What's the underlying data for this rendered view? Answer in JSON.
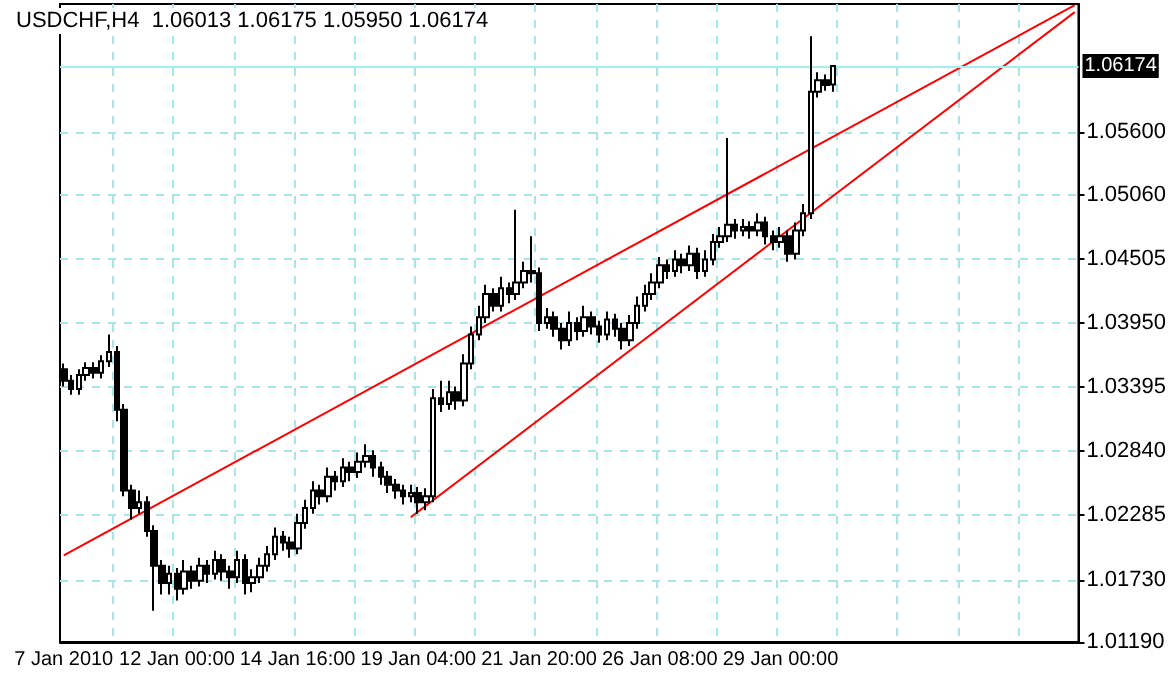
{
  "chart_data": {
    "type": "candlestick",
    "title": "USDCHF,H4  1.06013 1.06175 1.05950 1.06174",
    "categories": [
      "7 Jan 2010",
      null,
      null,
      null,
      null,
      null,
      null,
      null,
      null,
      null,
      null,
      null,
      null,
      null,
      null,
      "12 Jan 00:00",
      null,
      null,
      null,
      null,
      null,
      null,
      null,
      null,
      null,
      null,
      null,
      null,
      null,
      null,
      null,
      "14 Jan 16:00",
      null,
      null,
      null,
      null,
      null,
      null,
      null,
      null,
      null,
      null,
      null,
      null,
      null,
      null,
      null,
      "19 Jan 04:00",
      null,
      null,
      null,
      null,
      null,
      null,
      null,
      null,
      null,
      null,
      null,
      null,
      null,
      null,
      null,
      "21 Jan 20:00",
      null,
      null,
      null,
      null,
      null,
      null,
      null,
      null,
      null,
      null,
      null,
      null,
      null,
      null,
      null,
      "26 Jan 08:00",
      null,
      null,
      null,
      null,
      null,
      null,
      null,
      null,
      null,
      null,
      null,
      null,
      null,
      null,
      null,
      "29 Jan 00:00",
      null,
      null,
      null,
      null,
      null,
      null,
      null,
      null,
      null,
      null,
      null,
      null,
      null,
      null,
      null,
      null,
      null,
      null,
      null,
      null,
      null,
      null,
      null,
      null,
      null,
      null,
      null,
      null,
      null,
      null,
      null,
      null,
      null,
      null,
      null,
      null,
      null,
      null,
      null
    ],
    "ohlc": [
      [
        1.0355,
        1.036,
        1.034,
        1.0345
      ],
      [
        1.0345,
        1.035,
        1.0333,
        1.0338
      ],
      [
        1.0338,
        1.0355,
        1.0333,
        1.035
      ],
      [
        1.035,
        1.0361,
        1.0345,
        1.0356
      ],
      [
        1.0356,
        1.0361,
        1.0347,
        1.0352
      ],
      [
        1.0352,
        1.0367,
        1.0347,
        1.0362
      ],
      [
        1.0362,
        1.0385,
        1.0357,
        1.037
      ],
      [
        1.037,
        1.0375,
        1.031,
        1.032
      ],
      [
        1.032,
        1.0325,
        1.0245,
        1.025
      ],
      [
        1.025,
        1.0255,
        1.0225,
        1.0235
      ],
      [
        1.0235,
        1.025,
        1.023,
        1.024
      ],
      [
        1.024,
        1.0245,
        1.021,
        1.0215
      ],
      [
        1.0215,
        1.022,
        1.0146,
        1.0185
      ],
      [
        1.0185,
        1.019,
        1.016,
        1.017
      ],
      [
        1.017,
        1.0185,
        1.016,
        1.0178
      ],
      [
        1.0178,
        1.0183,
        1.0155,
        1.0165
      ],
      [
        1.0165,
        1.019,
        1.016,
        1.018
      ],
      [
        1.018,
        1.0185,
        1.0165,
        1.0172
      ],
      [
        1.0172,
        1.0192,
        1.0167,
        1.0185
      ],
      [
        1.0185,
        1.019,
        1.017,
        1.0178
      ],
      [
        1.0178,
        1.0198,
        1.0173,
        1.019
      ],
      [
        1.019,
        1.0195,
        1.0172,
        1.018
      ],
      [
        1.018,
        1.0185,
        1.0165,
        1.0175
      ],
      [
        1.0175,
        1.0198,
        1.017,
        1.019
      ],
      [
        1.019,
        1.0195,
        1.016,
        1.017
      ],
      [
        1.017,
        1.0182,
        1.0162,
        1.0175
      ],
      [
        1.0175,
        1.0192,
        1.017,
        1.0185
      ],
      [
        1.0185,
        1.0202,
        1.018,
        1.0195
      ],
      [
        1.0195,
        1.0218,
        1.019,
        1.021
      ],
      [
        1.021,
        1.0215,
        1.0198,
        1.0205
      ],
      [
        1.0205,
        1.021,
        1.0192,
        1.02
      ],
      [
        1.02,
        1.023,
        1.0195,
        1.0222
      ],
      [
        1.0222,
        1.0242,
        1.0217,
        1.0235
      ],
      [
        1.0235,
        1.0258,
        1.023,
        1.025
      ],
      [
        1.025,
        1.0255,
        1.0238,
        1.0245
      ],
      [
        1.0245,
        1.027,
        1.024,
        1.0262
      ],
      [
        1.0262,
        1.0267,
        1.025,
        1.0258
      ],
      [
        1.0258,
        1.0278,
        1.0253,
        1.027
      ],
      [
        1.027,
        1.0275,
        1.0258,
        1.0266
      ],
      [
        1.0266,
        1.0283,
        1.0261,
        1.0275
      ],
      [
        1.0275,
        1.029,
        1.027,
        1.028
      ],
      [
        1.028,
        1.0285,
        1.0262,
        1.027
      ],
      [
        1.027,
        1.0275,
        1.0255,
        1.0262
      ],
      [
        1.0262,
        1.0267,
        1.0248,
        1.0255
      ],
      [
        1.0255,
        1.026,
        1.0243,
        1.025
      ],
      [
        1.025,
        1.0255,
        1.0238,
        1.0245
      ],
      [
        1.0245,
        1.0255,
        1.024,
        1.0248
      ],
      [
        1.0248,
        1.0253,
        1.023,
        1.024
      ],
      [
        1.024,
        1.0252,
        1.0233,
        1.0245
      ],
      [
        1.0245,
        1.0338,
        1.024,
        1.033
      ],
      [
        1.033,
        1.0345,
        1.0318,
        1.0325
      ],
      [
        1.0325,
        1.0345,
        1.032,
        1.0335
      ],
      [
        1.0335,
        1.034,
        1.032,
        1.0328
      ],
      [
        1.0328,
        1.0368,
        1.0323,
        1.036
      ],
      [
        1.036,
        1.0392,
        1.0355,
        1.0385
      ],
      [
        1.0385,
        1.041,
        1.038,
        1.04
      ],
      [
        1.04,
        1.0428,
        1.0395,
        1.042
      ],
      [
        1.042,
        1.0425,
        1.0405,
        1.041
      ],
      [
        1.041,
        1.0435,
        1.0405,
        1.0425
      ],
      [
        1.0425,
        1.043,
        1.0412,
        1.042
      ],
      [
        1.042,
        1.0493,
        1.0415,
        1.043
      ],
      [
        1.043,
        1.0448,
        1.0425,
        1.044
      ],
      [
        1.044,
        1.047,
        1.043,
        1.0438
      ],
      [
        1.0438,
        1.0443,
        1.0388,
        1.0395
      ],
      [
        1.0395,
        1.0408,
        1.039,
        1.04
      ],
      [
        1.04,
        1.0405,
        1.0383,
        1.039
      ],
      [
        1.039,
        1.0395,
        1.0372,
        1.038
      ],
      [
        1.038,
        1.0405,
        1.0375,
        1.0395
      ],
      [
        1.0395,
        1.04,
        1.038,
        1.0388
      ],
      [
        1.0388,
        1.041,
        1.0383,
        1.04
      ],
      [
        1.04,
        1.0405,
        1.0385,
        1.0392
      ],
      [
        1.0392,
        1.0397,
        1.0378,
        1.0385
      ],
      [
        1.0385,
        1.0405,
        1.038,
        1.0398
      ],
      [
        1.0398,
        1.0403,
        1.0383,
        1.039
      ],
      [
        1.039,
        1.0395,
        1.0372,
        1.038
      ],
      [
        1.038,
        1.0402,
        1.0375,
        1.0395
      ],
      [
        1.0395,
        1.0418,
        1.039,
        1.041
      ],
      [
        1.041,
        1.0428,
        1.0405,
        1.042
      ],
      [
        1.042,
        1.0438,
        1.0415,
        1.043
      ],
      [
        1.043,
        1.0452,
        1.0425,
        1.0445
      ],
      [
        1.0445,
        1.045,
        1.0433,
        1.044
      ],
      [
        1.044,
        1.0458,
        1.0435,
        1.045
      ],
      [
        1.045,
        1.0455,
        1.0438,
        1.0445
      ],
      [
        1.0445,
        1.0462,
        1.044,
        1.0455
      ],
      [
        1.0455,
        1.046,
        1.0433,
        1.044
      ],
      [
        1.044,
        1.0458,
        1.0435,
        1.045
      ],
      [
        1.045,
        1.0472,
        1.0445,
        1.0465
      ],
      [
        1.0465,
        1.0478,
        1.046,
        1.047
      ],
      [
        1.047,
        1.0555,
        1.0465,
        1.048
      ],
      [
        1.048,
        1.0485,
        1.0468,
        1.0475
      ],
      [
        1.0475,
        1.0485,
        1.047,
        1.0478
      ],
      [
        1.0478,
        1.0483,
        1.0468,
        1.0475
      ],
      [
        1.0475,
        1.049,
        1.047,
        1.0482
      ],
      [
        1.0482,
        1.0487,
        1.0463,
        1.047
      ],
      [
        1.047,
        1.0475,
        1.0458,
        1.0465
      ],
      [
        1.0465,
        1.0478,
        1.046,
        1.047
      ],
      [
        1.047,
        1.0475,
        1.0448,
        1.0455
      ],
      [
        1.0455,
        1.0482,
        1.045,
        1.0475
      ],
      [
        1.0475,
        1.0498,
        1.047,
        1.049
      ],
      [
        1.049,
        1.0643,
        1.0485,
        1.0595
      ],
      [
        1.0595,
        1.0612,
        1.059,
        1.0605
      ],
      [
        1.0605,
        1.061,
        1.0596,
        1.0601
      ],
      [
        1.06013,
        1.06175,
        1.0595,
        1.06174
      ],
      null,
      null,
      null,
      null,
      null,
      null,
      null,
      null,
      null,
      null,
      null,
      null,
      null,
      null,
      null,
      null,
      null,
      null,
      null,
      null,
      null,
      null,
      null,
      null,
      null,
      null,
      null,
      null,
      null,
      null,
      null,
      null
    ],
    "series": [
      {
        "type": "line",
        "color": "#ff0000",
        "values": [
          1.0194,
          null,
          null,
          null,
          null,
          null,
          null,
          null,
          null,
          null,
          null,
          null,
          null,
          null,
          null,
          null,
          null,
          null,
          null,
          null,
          null,
          null,
          null,
          null,
          null,
          null,
          null,
          null,
          null,
          null,
          null,
          null,
          null,
          null,
          null,
          null,
          null,
          null,
          null,
          null,
          null,
          null,
          null,
          null,
          null,
          null,
          null,
          null,
          null,
          null,
          null,
          null,
          null,
          null,
          null,
          null,
          null,
          null,
          null,
          null,
          null,
          null,
          null,
          null,
          null,
          null,
          null,
          null,
          null,
          null,
          null,
          null,
          null,
          null,
          null,
          null,
          null,
          null,
          null,
          null,
          null,
          null,
          null,
          null,
          null,
          null,
          null,
          null,
          null,
          null,
          null,
          null,
          null,
          null,
          null,
          null,
          null,
          null,
          null,
          null,
          null,
          null,
          null,
          null,
          null,
          null,
          null,
          null,
          null,
          null,
          null,
          null,
          null,
          null,
          null,
          null,
          null,
          null,
          null,
          null,
          null,
          null,
          null,
          null,
          null,
          null,
          null,
          null,
          null,
          null,
          null,
          null,
          null,
          null,
          1.067
        ]
      },
      {
        "type": "line",
        "color": "#ff0000",
        "values": [
          null,
          null,
          null,
          null,
          null,
          null,
          null,
          null,
          null,
          null,
          null,
          null,
          null,
          null,
          null,
          null,
          null,
          null,
          null,
          null,
          null,
          null,
          null,
          null,
          null,
          null,
          null,
          null,
          null,
          null,
          null,
          null,
          null,
          null,
          null,
          null,
          null,
          null,
          null,
          null,
          null,
          null,
          null,
          null,
          null,
          null,
          1.0227,
          null,
          null,
          null,
          null,
          null,
          null,
          null,
          null,
          null,
          null,
          null,
          null,
          null,
          null,
          null,
          null,
          null,
          null,
          null,
          null,
          null,
          null,
          null,
          null,
          null,
          null,
          null,
          null,
          null,
          null,
          null,
          null,
          null,
          null,
          null,
          null,
          null,
          null,
          null,
          null,
          null,
          null,
          null,
          null,
          null,
          null,
          null,
          null,
          null,
          null,
          null,
          null,
          null,
          null,
          null,
          null,
          null,
          null,
          null,
          null,
          null,
          null,
          null,
          null,
          null,
          null,
          null,
          null,
          null,
          null,
          null,
          null,
          null,
          null,
          null,
          null,
          null,
          null,
          null,
          null,
          null,
          null,
          null,
          null,
          null,
          null,
          null,
          1.0664
        ]
      }
    ],
    "ref_lines": [
      {
        "axis": "y",
        "value": 1.06174,
        "label": "1.06174",
        "color": "#a0f0f0"
      }
    ],
    "ylim": [
      1.0119,
      1.0671
    ],
    "yticks": [
      {
        "value": 1.0119,
        "label": "1.01190"
      },
      {
        "value": 1.0173,
        "label": "1.01730"
      },
      {
        "value": 1.02285,
        "label": "1.02285"
      },
      {
        "value": 1.0284,
        "label": "1.02840"
      },
      {
        "value": 1.03395,
        "label": "1.03395"
      },
      {
        "value": 1.0395,
        "label": "1.03950"
      },
      {
        "value": 1.04505,
        "label": "1.04505"
      },
      {
        "value": 1.0506,
        "label": "1.05060"
      },
      {
        "value": 1.056,
        "label": "1.05600"
      }
    ],
    "grid": true
  }
}
